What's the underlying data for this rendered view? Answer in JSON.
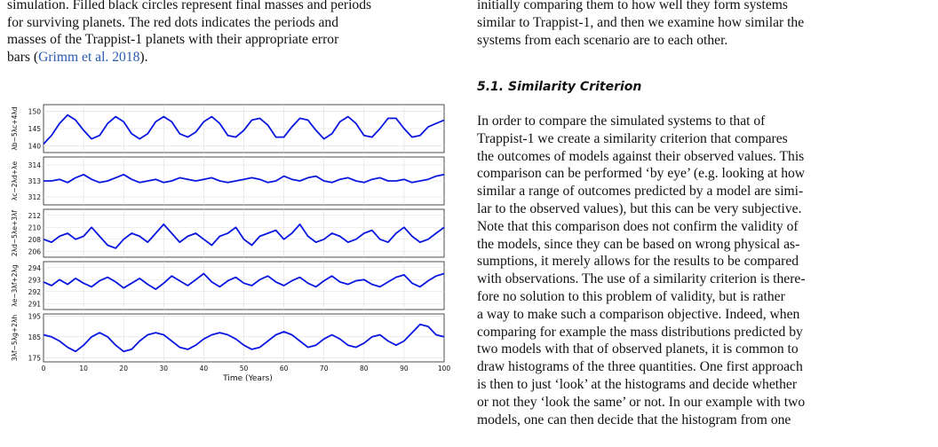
{
  "caption": {
    "lines": [
      "simulation. Filled black circles represent final masses and periods",
      "for surviving planets. The red dots indicates the periods and",
      "masses of the Trappist-1 planets with their appropriate error"
    ],
    "last_prefix": "bars (",
    "citation": "Grimm et al. 2018",
    "last_suffix": ")."
  },
  "right": {
    "intro_lines": [
      "initially comparing them to how well they form systems",
      "similar to Trappist-1, and then we examine how similar the",
      "systems from each scenario are to each other."
    ],
    "section_title": "5.1. Similarity Criterion",
    "paragraph_lines": [
      "In order to compare the simulated systems to that of",
      "Trappist-1 we create a similarity criterion that compares",
      "the outcomes of models against their observed values. This",
      "comparison can be performed ‘by eye’ (e.g. looking at how",
      "similar a range of outcomes predicted by a model are simi-",
      "lar to the observed values), but this can be very subjective.",
      "Note that this comparison does not confirm the validity of",
      "the models, since they can be based on wrong physical as-",
      "sumptions, it merely allows for the results to be compared",
      "with observations. The use of a similarity criterion is there-",
      "fore no solution to this problem of validity, but is rather",
      "a way to make such a comparison objective. Indeed, when",
      "comparing for example the mass distributions predicted by",
      "two models with that of observed planets, it is common to",
      "draw histograms of the three quantities. One first approach",
      "is then to just ‘look’ at the histograms and decide whether",
      "or not they ‘look the same’ or not. In our example with two",
      "models, one can then decide that the histogram from one"
    ]
  },
  "chart_data": {
    "type": "line",
    "line_color": "#0a17e0",
    "xlabel": "Time (Years)",
    "xlim": [
      0,
      100
    ],
    "xticks": [
      "0",
      "10",
      "20",
      "30",
      "40",
      "50",
      "60",
      "70",
      "80",
      "90",
      "100"
    ],
    "grid": true,
    "panels": [
      {
        "ylabel": "λb−5λc+4λd",
        "ylim": [
          138,
          152
        ],
        "yticks": [
          "150",
          "145",
          "140"
        ],
        "ytick_values": [
          150,
          145,
          140
        ],
        "series": {
          "x": [
            0,
            2,
            4,
            6,
            8,
            10,
            12,
            14,
            16,
            18,
            20,
            22,
            24,
            26,
            28,
            30,
            32,
            34,
            36,
            38,
            40,
            42,
            44,
            46,
            48,
            50,
            52,
            54,
            56,
            58,
            60,
            62,
            64,
            66,
            68,
            70,
            72,
            74,
            76,
            78,
            80,
            82,
            84,
            86,
            88,
            90,
            92,
            94,
            96,
            98,
            100
          ],
          "y": [
            140.5,
            143,
            146.5,
            149,
            147.5,
            144.5,
            142,
            143,
            146.5,
            148.5,
            147,
            143.5,
            142,
            143.5,
            147,
            148.5,
            147,
            143.5,
            142.5,
            144,
            147,
            148.5,
            146.5,
            143,
            142.5,
            144.5,
            147.5,
            148,
            146,
            142.5,
            142.5,
            145.5,
            148,
            147.5,
            144.5,
            142,
            143.5,
            147,
            148.5,
            146.5,
            143,
            142.5,
            145,
            148,
            148,
            145,
            142.5,
            143,
            145.5,
            146.5,
            147.5
          ]
        }
      },
      {
        "ylabel": "λc−2λd+λe",
        "ylim": [
          311.5,
          314.5
        ],
        "yticks": [
          "314",
          "313",
          "312"
        ],
        "ytick_values": [
          314,
          313,
          312
        ],
        "series": {
          "x": [
            0,
            2,
            4,
            6,
            8,
            10,
            12,
            14,
            16,
            18,
            20,
            22,
            24,
            26,
            28,
            30,
            32,
            34,
            36,
            38,
            40,
            42,
            44,
            46,
            48,
            50,
            52,
            54,
            56,
            58,
            60,
            62,
            64,
            66,
            68,
            70,
            72,
            74,
            76,
            78,
            80,
            82,
            84,
            86,
            88,
            90,
            92,
            94,
            96,
            98,
            100
          ],
          "y": [
            313,
            313,
            313.1,
            312.9,
            313.2,
            313.4,
            313.1,
            312.9,
            313,
            313.2,
            313.4,
            313.1,
            312.9,
            313,
            313.1,
            312.9,
            313,
            313.2,
            313.1,
            313,
            313.1,
            313.2,
            313,
            312.9,
            313,
            313.1,
            313.2,
            313.1,
            312.9,
            313,
            313.3,
            313.1,
            313,
            313.2,
            313.3,
            313,
            312.9,
            313.1,
            313.2,
            313,
            312.9,
            313.1,
            313.2,
            313,
            313,
            313.1,
            312.9,
            313,
            313.1,
            313.3,
            313.4
          ]
        }
      },
      {
        "ylabel": "2λd−5λe+3λf",
        "ylim": [
          205,
          213
        ],
        "yticks": [
          "212",
          "210",
          "208",
          "206"
        ],
        "ytick_values": [
          212,
          210,
          208,
          206
        ],
        "series": {
          "x": [
            0,
            2,
            4,
            6,
            8,
            10,
            12,
            14,
            16,
            18,
            20,
            22,
            24,
            26,
            28,
            30,
            32,
            34,
            36,
            38,
            40,
            42,
            44,
            46,
            48,
            50,
            52,
            54,
            56,
            58,
            60,
            62,
            64,
            66,
            68,
            70,
            72,
            74,
            76,
            78,
            80,
            82,
            84,
            86,
            88,
            90,
            92,
            94,
            96,
            98,
            100
          ],
          "y": [
            208,
            207.5,
            208.5,
            209,
            208,
            208.5,
            210,
            208.5,
            207,
            206.5,
            208,
            209,
            208.5,
            207.5,
            209,
            210.5,
            209,
            207.5,
            208.5,
            209,
            208,
            207,
            208.5,
            209,
            210,
            208,
            207,
            208.5,
            209,
            209.5,
            208,
            209,
            210.5,
            208.5,
            207.5,
            208,
            209,
            208.5,
            207.5,
            208,
            209,
            209.5,
            208,
            207.5,
            209,
            210,
            208.5,
            207.5,
            208,
            209,
            210
          ]
        }
      },
      {
        "ylabel": "λe−3λf+2λg",
        "ylim": [
          290.5,
          294.5
        ],
        "yticks": [
          "294",
          "293",
          "292",
          "291"
        ],
        "ytick_values": [
          294,
          293,
          292,
          291
        ],
        "series": {
          "x": [
            0,
            2,
            4,
            6,
            8,
            10,
            12,
            14,
            16,
            18,
            20,
            22,
            24,
            26,
            28,
            30,
            32,
            34,
            36,
            38,
            40,
            42,
            44,
            46,
            48,
            50,
            52,
            54,
            56,
            58,
            60,
            62,
            64,
            66,
            68,
            70,
            72,
            74,
            76,
            78,
            80,
            82,
            84,
            86,
            88,
            90,
            92,
            94,
            96,
            98,
            100
          ],
          "y": [
            292.8,
            292.5,
            293,
            292.6,
            293.1,
            292.7,
            292.4,
            292.9,
            293.2,
            292.8,
            292.3,
            292.7,
            293.1,
            292.6,
            292.2,
            292.7,
            293.3,
            292.9,
            292.5,
            293,
            293.5,
            292.8,
            292.4,
            292.9,
            293.2,
            292.7,
            292.5,
            293,
            293.3,
            292.8,
            292.5,
            292.9,
            293.2,
            292.7,
            292.4,
            292.9,
            293.3,
            292.8,
            292.6,
            292.9,
            293,
            292.6,
            292.4,
            292.8,
            293.2,
            293.4,
            292.7,
            292.4,
            292.9,
            293.3,
            293.5
          ]
        }
      },
      {
        "ylabel": "3λf−5λg+2λh",
        "ylim": [
          173,
          196
        ],
        "yticks": [
          "195",
          "185",
          "175"
        ],
        "ytick_values": [
          195,
          185,
          175
        ],
        "series": {
          "x": [
            0,
            2,
            4,
            6,
            8,
            10,
            12,
            14,
            16,
            18,
            20,
            22,
            24,
            26,
            28,
            30,
            32,
            34,
            36,
            38,
            40,
            42,
            44,
            46,
            48,
            50,
            52,
            54,
            56,
            58,
            60,
            62,
            64,
            66,
            68,
            70,
            72,
            74,
            76,
            78,
            80,
            82,
            84,
            86,
            88,
            90,
            92,
            94,
            96,
            98,
            100
          ],
          "y": [
            186,
            185,
            183,
            180,
            178,
            181,
            185,
            187,
            185,
            181,
            178,
            179,
            183,
            186,
            187,
            186,
            183,
            180,
            179,
            181,
            184,
            186,
            187,
            186,
            184,
            181,
            179,
            180,
            183,
            186,
            187.5,
            186,
            183,
            180,
            181,
            184,
            186,
            184,
            181,
            180,
            182,
            185,
            186,
            183,
            181,
            183,
            187,
            191,
            190,
            186,
            185
          ]
        }
      }
    ]
  }
}
